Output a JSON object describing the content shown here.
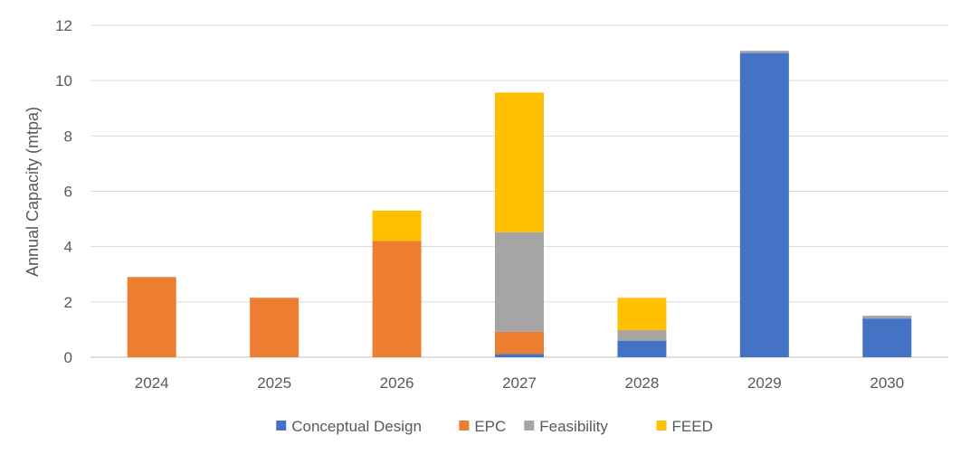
{
  "chart_data": {
    "type": "bar",
    "stacked": true,
    "title": "",
    "xlabel": "",
    "ylabel": "Annual Capacity (mtpa)",
    "ylim": [
      0,
      12
    ],
    "yticks": [
      0,
      2,
      4,
      6,
      8,
      10,
      12
    ],
    "grid": true,
    "legend_position": "bottom",
    "categories": [
      "2024",
      "2025",
      "2026",
      "2027",
      "2028",
      "2029",
      "2030"
    ],
    "series": [
      {
        "name": "Conceptual Design",
        "color": "#4472C4",
        "values": [
          0,
          0,
          0,
          0.12,
          0.6,
          11.0,
          1.4
        ]
      },
      {
        "name": "EPC",
        "color": "#ED7D31",
        "values": [
          2.9,
          2.15,
          4.2,
          0.8,
          0,
          0,
          0
        ]
      },
      {
        "name": "Feasibility",
        "color": "#A5A5A5",
        "values": [
          0,
          0,
          0,
          3.6,
          0.38,
          0.08,
          0.1
        ]
      },
      {
        "name": "FEED",
        "color": "#FFC000",
        "values": [
          0,
          0,
          1.1,
          5.05,
          1.17,
          0,
          0
        ]
      }
    ]
  }
}
